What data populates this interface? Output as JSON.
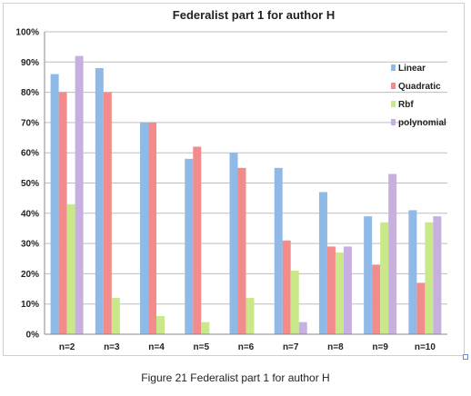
{
  "figure": {
    "caption": "Figure 21   Federalist part 1 for author H"
  },
  "chart_data": {
    "type": "bar",
    "title": "Federalist part 1 for author H",
    "xlabel": "",
    "ylabel": "",
    "ylim": [
      0,
      100
    ],
    "y_ticks": [
      "0%",
      "10%",
      "20%",
      "30%",
      "40%",
      "50%",
      "60%",
      "70%",
      "80%",
      "90%",
      "100%"
    ],
    "grid": true,
    "legend_position": "right",
    "categories": [
      "n=2",
      "n=3",
      "n=4",
      "n=5",
      "n=6",
      "n=7",
      "n=8",
      "n=9",
      "n=10"
    ],
    "series": [
      {
        "name": "Linear",
        "color": "#8fb9e6",
        "values": [
          86,
          88,
          70,
          58,
          60,
          55,
          47,
          39,
          41
        ]
      },
      {
        "name": "Quadratic",
        "color": "#f28c8c",
        "values": [
          80,
          80,
          70,
          62,
          55,
          31,
          29,
          23,
          17
        ]
      },
      {
        "name": "Rbf",
        "color": "#c8e88a",
        "values": [
          43,
          12,
          6,
          4,
          12,
          21,
          27,
          37,
          37
        ]
      },
      {
        "name": "polynomial",
        "color": "#c7b0e0",
        "values": [
          92,
          0,
          0,
          0,
          0,
          4,
          29,
          53,
          39
        ]
      }
    ]
  }
}
